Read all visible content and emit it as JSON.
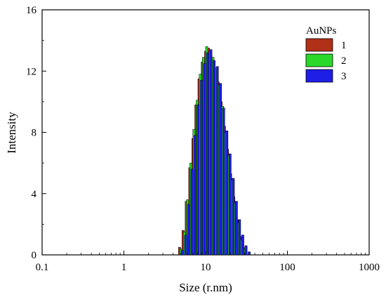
{
  "chart_data": {
    "type": "bar",
    "xlabel": "Size (r.nm)",
    "ylabel": "Intensity",
    "xscale": "log",
    "xlim": [
      0.1,
      1000
    ],
    "ylim": [
      0,
      16
    ],
    "x_ticks": [
      "0.1",
      "1",
      "10",
      "100",
      "1000"
    ],
    "y_ticks": [
      "0",
      "4",
      "8",
      "12",
      "16"
    ],
    "legend_title": "AuNPs",
    "legend_position": "top-right",
    "grid": false,
    "series": [
      {
        "name": "1",
        "color": "#b03018",
        "points": [
          {
            "x": 4.8,
            "y": 0.5
          },
          {
            "x": 5.3,
            "y": 1.6
          },
          {
            "x": 5.8,
            "y": 3.5
          },
          {
            "x": 6.4,
            "y": 5.7
          },
          {
            "x": 7.0,
            "y": 7.6
          },
          {
            "x": 7.6,
            "y": 9.8
          },
          {
            "x": 8.3,
            "y": 11.5
          },
          {
            "x": 9.1,
            "y": 12.6
          },
          {
            "x": 10.0,
            "y": 13.3
          },
          {
            "x": 10.9,
            "y": 13.5
          },
          {
            "x": 11.9,
            "y": 12.8
          },
          {
            "x": 13.0,
            "y": 12.1
          },
          {
            "x": 14.2,
            "y": 11.3
          },
          {
            "x": 15.5,
            "y": 10.0
          },
          {
            "x": 17.0,
            "y": 8.4
          },
          {
            "x": 18.5,
            "y": 6.9
          },
          {
            "x": 20.2,
            "y": 5.3
          },
          {
            "x": 22.1,
            "y": 3.8
          },
          {
            "x": 24.2,
            "y": 2.3
          },
          {
            "x": 26.4,
            "y": 1.2
          },
          {
            "x": 28.8,
            "y": 0.5
          }
        ]
      },
      {
        "name": "2",
        "color": "#2ad82a",
        "points": [
          {
            "x": 5.0,
            "y": 0.4
          },
          {
            "x": 5.5,
            "y": 1.5
          },
          {
            "x": 6.0,
            "y": 3.6
          },
          {
            "x": 6.6,
            "y": 6.0
          },
          {
            "x": 7.2,
            "y": 8.2
          },
          {
            "x": 7.9,
            "y": 10.1
          },
          {
            "x": 8.6,
            "y": 11.8
          },
          {
            "x": 9.4,
            "y": 12.9
          },
          {
            "x": 10.3,
            "y": 13.6
          },
          {
            "x": 11.3,
            "y": 13.3
          },
          {
            "x": 12.3,
            "y": 12.9
          },
          {
            "x": 13.5,
            "y": 12.2
          },
          {
            "x": 14.7,
            "y": 11.1
          },
          {
            "x": 16.1,
            "y": 9.7
          },
          {
            "x": 17.6,
            "y": 8.0
          },
          {
            "x": 19.2,
            "y": 6.5
          },
          {
            "x": 21.0,
            "y": 4.9
          },
          {
            "x": 23.0,
            "y": 3.4
          },
          {
            "x": 25.1,
            "y": 2.1
          },
          {
            "x": 27.5,
            "y": 1.0
          },
          {
            "x": 30.0,
            "y": 0.4
          }
        ]
      },
      {
        "name": "3",
        "color": "#1e1ee6",
        "points": [
          {
            "x": 5.2,
            "y": 0.3
          },
          {
            "x": 5.7,
            "y": 1.3
          },
          {
            "x": 6.2,
            "y": 3.3
          },
          {
            "x": 6.8,
            "y": 5.6
          },
          {
            "x": 7.4,
            "y": 7.8
          },
          {
            "x": 8.1,
            "y": 9.8
          },
          {
            "x": 8.9,
            "y": 11.4
          },
          {
            "x": 9.7,
            "y": 12.5
          },
          {
            "x": 10.6,
            "y": 13.2
          },
          {
            "x": 11.6,
            "y": 13.4
          },
          {
            "x": 12.7,
            "y": 12.7
          },
          {
            "x": 13.9,
            "y": 12.3
          },
          {
            "x": 15.2,
            "y": 11.2
          },
          {
            "x": 16.6,
            "y": 9.6
          },
          {
            "x": 18.2,
            "y": 8.1
          },
          {
            "x": 19.9,
            "y": 6.6
          },
          {
            "x": 21.8,
            "y": 5.0
          },
          {
            "x": 23.8,
            "y": 3.5
          },
          {
            "x": 26.0,
            "y": 2.3
          },
          {
            "x": 28.5,
            "y": 1.3
          },
          {
            "x": 31.2,
            "y": 0.6
          },
          {
            "x": 34.1,
            "y": 0.2
          }
        ]
      }
    ]
  }
}
